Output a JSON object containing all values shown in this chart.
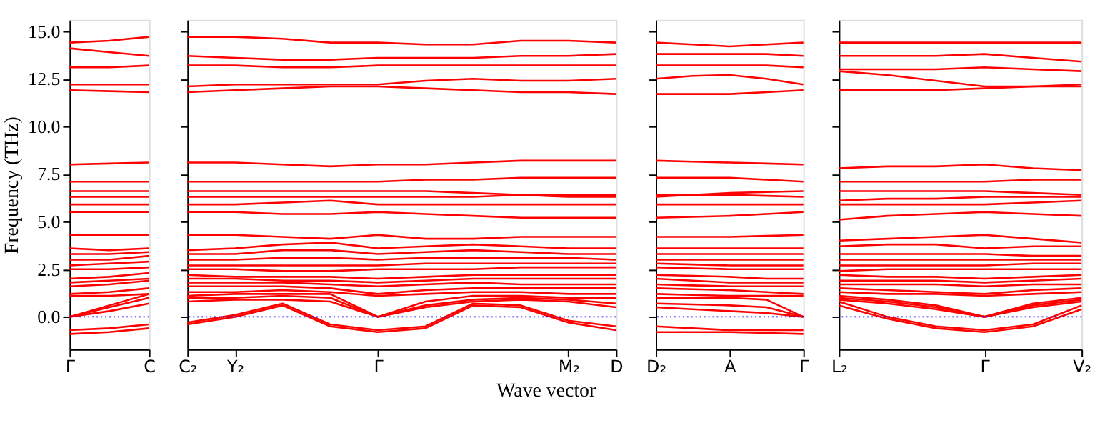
{
  "chart_data": [
    {
      "type": "line",
      "ylabel": "Frequency (THz)",
      "color": "#ff0000",
      "categories": [
        "Γ",
        null,
        "C"
      ],
      "ylim": [
        -1.7,
        15.6
      ],
      "yticks": [
        {
          "value": 0,
          "label": "0.0"
        },
        {
          "value": 2.5,
          "label": "2.5"
        },
        {
          "value": 5,
          "label": "5.0"
        },
        {
          "value": 7.5,
          "label": "7.5"
        },
        {
          "value": 10,
          "label": "10.0"
        },
        {
          "value": 12.5,
          "label": "12.5"
        },
        {
          "value": 15,
          "label": "15.0"
        }
      ],
      "ref_lines": [
        {
          "axis": "y",
          "value": 0,
          "color": "#0000ff",
          "line_style": "dotted"
        }
      ],
      "series": [
        {
          "values": [
            -0.9,
            -0.8,
            -0.6
          ]
        },
        {
          "values": [
            -0.7,
            -0.6,
            -0.4
          ]
        },
        {
          "values": [
            0,
            0.5,
            1.0
          ]
        },
        {
          "values": [
            0,
            0.6,
            1.2
          ]
        },
        {
          "values": [
            0,
            0.3,
            0.7
          ]
        },
        {
          "values": [
            1.1,
            1.1,
            1.2
          ]
        },
        {
          "values": [
            1.2,
            1.3,
            1.5
          ]
        },
        {
          "values": [
            1.6,
            1.7,
            1.9
          ]
        },
        {
          "values": [
            1.8,
            1.9,
            2.0
          ]
        },
        {
          "values": [
            2.0,
            2.1,
            2.3
          ]
        },
        {
          "values": [
            2.5,
            2.5,
            2.6
          ]
        },
        {
          "values": [
            2.7,
            2.8,
            2.9
          ]
        },
        {
          "values": [
            3.0,
            3.0,
            3.2
          ]
        },
        {
          "values": [
            3.3,
            3.3,
            3.4
          ]
        },
        {
          "values": [
            3.6,
            3.5,
            3.6
          ]
        },
        {
          "values": [
            4.3,
            4.3,
            4.3
          ]
        },
        {
          "values": [
            5.5,
            5.5,
            5.5
          ]
        },
        {
          "values": [
            5.9,
            5.9,
            5.9
          ]
        },
        {
          "values": [
            6.3,
            6.3,
            6.3
          ]
        },
        {
          "values": [
            6.6,
            6.6,
            6.6
          ]
        },
        {
          "values": [
            7.1,
            7.1,
            7.1
          ]
        },
        {
          "values": [
            8.0,
            8.05,
            8.1
          ]
        },
        {
          "values": [
            11.9,
            11.85,
            11.8
          ]
        },
        {
          "values": [
            12.2,
            12.2,
            12.2
          ]
        },
        {
          "values": [
            13.1,
            13.1,
            13.2
          ]
        },
        {
          "values": [
            14.1,
            13.9,
            13.7
          ]
        },
        {
          "values": [
            14.4,
            14.5,
            14.7
          ]
        }
      ]
    },
    {
      "type": "line",
      "xlabel": "Wave vector",
      "color": "#ff0000",
      "tick_labels": "x",
      "categories": [
        "C₂",
        "Y₂",
        null,
        null,
        "Γ",
        null,
        null,
        null,
        "M₂",
        "D"
      ],
      "ylim": [
        -1.7,
        15.6
      ],
      "ref_lines": [
        {
          "axis": "y",
          "value": 0,
          "color": "#0000ff",
          "line_style": "dotted"
        }
      ],
      "series": [
        {
          "values": [
            -0.4,
            0.0,
            0.6,
            -0.5,
            -0.8,
            -0.6,
            0.6,
            0.5,
            -0.3,
            -0.7
          ]
        },
        {
          "values": [
            -0.3,
            0.1,
            0.7,
            -0.4,
            -0.7,
            -0.5,
            0.7,
            0.6,
            -0.2,
            -0.5
          ]
        },
        {
          "values": [
            0.8,
            0.9,
            0.9,
            0.8,
            0.0,
            0.5,
            0.8,
            0.9,
            0.8,
            0.5
          ]
        },
        {
          "values": [
            1.0,
            1.0,
            1.1,
            1.0,
            0.0,
            0.6,
            0.9,
            1.0,
            0.9,
            0.7
          ]
        },
        {
          "values": [
            1.1,
            1.2,
            1.2,
            1.2,
            0.0,
            0.8,
            1.1,
            1.1,
            1.0,
            1.0
          ]
        },
        {
          "values": [
            1.3,
            1.3,
            1.4,
            1.3,
            1.1,
            1.2,
            1.3,
            1.3,
            1.2,
            1.2
          ]
        },
        {
          "values": [
            1.6,
            1.6,
            1.6,
            1.5,
            1.2,
            1.4,
            1.5,
            1.5,
            1.5,
            1.5
          ]
        },
        {
          "values": [
            1.8,
            1.8,
            1.8,
            1.7,
            1.6,
            1.7,
            1.8,
            1.7,
            1.7,
            1.7
          ]
        },
        {
          "values": [
            2.0,
            2.0,
            1.9,
            1.9,
            1.8,
            1.9,
            2.0,
            2.0,
            2.0,
            2.0
          ]
        },
        {
          "values": [
            2.2,
            2.1,
            2.1,
            2.1,
            2.0,
            2.1,
            2.2,
            2.2,
            2.2,
            2.2
          ]
        },
        {
          "values": [
            2.5,
            2.5,
            2.4,
            2.4,
            2.5,
            2.5,
            2.5,
            2.6,
            2.6,
            2.6
          ]
        },
        {
          "values": [
            2.7,
            2.7,
            2.7,
            2.7,
            2.7,
            2.8,
            2.8,
            2.8,
            2.8,
            2.8
          ]
        },
        {
          "values": [
            3.0,
            3.0,
            3.1,
            3.1,
            3.0,
            3.1,
            3.1,
            3.1,
            3.1,
            3.0
          ]
        },
        {
          "values": [
            3.3,
            3.3,
            3.5,
            3.5,
            3.3,
            3.4,
            3.5,
            3.4,
            3.3,
            3.3
          ]
        },
        {
          "values": [
            3.5,
            3.6,
            3.8,
            3.9,
            3.6,
            3.7,
            3.8,
            3.7,
            3.6,
            3.6
          ]
        },
        {
          "values": [
            4.3,
            4.3,
            4.2,
            4.1,
            4.3,
            4.1,
            4.1,
            4.2,
            4.2,
            4.2
          ]
        },
        {
          "values": [
            5.5,
            5.5,
            5.4,
            5.4,
            5.5,
            5.4,
            5.3,
            5.2,
            5.2,
            5.2
          ]
        },
        {
          "values": [
            5.9,
            5.9,
            6.0,
            6.1,
            5.9,
            5.9,
            5.9,
            5.9,
            5.9,
            5.9
          ]
        },
        {
          "values": [
            6.3,
            6.3,
            6.3,
            6.3,
            6.3,
            6.3,
            6.3,
            6.4,
            6.4,
            6.4
          ]
        },
        {
          "values": [
            6.6,
            6.6,
            6.6,
            6.6,
            6.6,
            6.6,
            6.5,
            6.4,
            6.3,
            6.3
          ]
        },
        {
          "values": [
            7.1,
            7.1,
            7.1,
            7.1,
            7.1,
            7.2,
            7.2,
            7.3,
            7.3,
            7.3
          ]
        },
        {
          "values": [
            8.1,
            8.1,
            8.0,
            7.9,
            8.0,
            8.0,
            8.1,
            8.2,
            8.2,
            8.2
          ]
        },
        {
          "values": [
            11.8,
            11.9,
            12.0,
            12.1,
            12.1,
            12.0,
            11.9,
            11.8,
            11.8,
            11.7
          ]
        },
        {
          "values": [
            12.1,
            12.2,
            12.2,
            12.2,
            12.2,
            12.4,
            12.5,
            12.4,
            12.4,
            12.5
          ]
        },
        {
          "values": [
            13.2,
            13.2,
            13.1,
            13.1,
            13.2,
            13.2,
            13.2,
            13.2,
            13.2,
            13.2
          ]
        },
        {
          "values": [
            13.7,
            13.6,
            13.5,
            13.5,
            13.6,
            13.6,
            13.6,
            13.7,
            13.7,
            13.8
          ]
        },
        {
          "values": [
            14.7,
            14.7,
            14.6,
            14.4,
            14.4,
            14.3,
            14.3,
            14.5,
            14.5,
            14.4
          ]
        }
      ]
    },
    {
      "type": "line",
      "color": "#ff0000",
      "tick_labels": "x",
      "categories": [
        "D₂",
        null,
        "A",
        null,
        "Γ"
      ],
      "ylim": [
        -1.7,
        15.6
      ],
      "ref_lines": [
        {
          "axis": "y",
          "value": 0,
          "color": "#0000ff",
          "line_style": "dotted"
        }
      ],
      "series": [
        {
          "values": [
            -0.8,
            -0.8,
            -0.8,
            -0.85,
            -0.9
          ]
        },
        {
          "values": [
            -0.5,
            -0.6,
            -0.7,
            -0.7,
            -0.7
          ]
        },
        {
          "values": [
            0.5,
            0.4,
            0.3,
            0.2,
            0.0
          ]
        },
        {
          "values": [
            0.7,
            0.65,
            0.6,
            0.5,
            0.0
          ]
        },
        {
          "values": [
            1.0,
            1.0,
            1.0,
            0.9,
            0.0
          ]
        },
        {
          "values": [
            1.2,
            1.15,
            1.1,
            1.1,
            1.1
          ]
        },
        {
          "values": [
            1.5,
            1.45,
            1.4,
            1.3,
            1.2
          ]
        },
        {
          "values": [
            1.7,
            1.65,
            1.6,
            1.6,
            1.6
          ]
        },
        {
          "values": [
            2.0,
            1.9,
            1.8,
            1.8,
            1.8
          ]
        },
        {
          "values": [
            2.2,
            2.15,
            2.1,
            2.0,
            2.0
          ]
        },
        {
          "values": [
            2.6,
            2.55,
            2.5,
            2.5,
            2.5
          ]
        },
        {
          "values": [
            2.8,
            2.75,
            2.7,
            2.7,
            2.7
          ]
        },
        {
          "values": [
            3.0,
            3.0,
            3.0,
            3.0,
            3.0
          ]
        },
        {
          "values": [
            3.3,
            3.3,
            3.3,
            3.3,
            3.3
          ]
        },
        {
          "values": [
            3.6,
            3.6,
            3.6,
            3.6,
            3.6
          ]
        },
        {
          "values": [
            4.2,
            4.2,
            4.2,
            4.25,
            4.3
          ]
        },
        {
          "values": [
            5.2,
            5.25,
            5.3,
            5.4,
            5.5
          ]
        },
        {
          "values": [
            5.9,
            5.9,
            5.9,
            5.9,
            5.9
          ]
        },
        {
          "values": [
            6.4,
            6.4,
            6.4,
            6.35,
            6.3
          ]
        },
        {
          "values": [
            6.3,
            6.4,
            6.5,
            6.55,
            6.6
          ]
        },
        {
          "values": [
            7.3,
            7.3,
            7.3,
            7.2,
            7.1
          ]
        },
        {
          "values": [
            8.2,
            8.15,
            8.1,
            8.05,
            8.0
          ]
        },
        {
          "values": [
            11.7,
            11.7,
            11.7,
            11.8,
            11.9
          ]
        },
        {
          "values": [
            12.5,
            12.65,
            12.7,
            12.5,
            12.2
          ]
        },
        {
          "values": [
            13.2,
            13.2,
            13.2,
            13.2,
            13.1
          ]
        },
        {
          "values": [
            13.8,
            13.8,
            13.8,
            13.8,
            13.7
          ]
        },
        {
          "values": [
            14.4,
            14.3,
            14.2,
            14.3,
            14.4
          ]
        }
      ]
    },
    {
      "type": "line",
      "color": "#ff0000",
      "tick_labels": "x",
      "categories": [
        "L₂",
        null,
        null,
        "Γ",
        null,
        "V₂"
      ],
      "ylim": [
        -1.7,
        15.6
      ],
      "ref_lines": [
        {
          "axis": "y",
          "value": 0,
          "color": "#0000ff",
          "line_style": "dotted"
        }
      ],
      "series": [
        {
          "values": [
            0.6,
            -0.1,
            -0.6,
            -0.8,
            -0.5,
            0.4
          ]
        },
        {
          "values": [
            0.8,
            0.0,
            -0.5,
            -0.7,
            -0.4,
            0.6
          ]
        },
        {
          "values": [
            0.9,
            0.7,
            0.4,
            0.0,
            0.5,
            0.8
          ]
        },
        {
          "values": [
            1.0,
            0.8,
            0.5,
            0.0,
            0.6,
            0.9
          ]
        },
        {
          "values": [
            1.1,
            0.9,
            0.6,
            0.0,
            0.7,
            1.0
          ]
        },
        {
          "values": [
            1.3,
            1.2,
            1.2,
            1.1,
            1.2,
            1.3
          ]
        },
        {
          "values": [
            1.5,
            1.4,
            1.3,
            1.2,
            1.4,
            1.5
          ]
        },
        {
          "values": [
            1.7,
            1.7,
            1.7,
            1.6,
            1.7,
            1.7
          ]
        },
        {
          "values": [
            1.9,
            1.9,
            1.9,
            1.8,
            1.9,
            2.0
          ]
        },
        {
          "values": [
            2.2,
            2.1,
            2.1,
            2.0,
            2.1,
            2.2
          ]
        },
        {
          "values": [
            2.4,
            2.5,
            2.5,
            2.5,
            2.5,
            2.5
          ]
        },
        {
          "values": [
            2.7,
            2.7,
            2.7,
            2.7,
            2.8,
            2.8
          ]
        },
        {
          "values": [
            3.0,
            3.0,
            3.0,
            3.0,
            3.0,
            3.0
          ]
        },
        {
          "values": [
            3.3,
            3.3,
            3.3,
            3.3,
            3.2,
            3.2
          ]
        },
        {
          "values": [
            3.7,
            3.8,
            3.8,
            3.6,
            3.7,
            3.7
          ]
        },
        {
          "values": [
            4.0,
            4.1,
            4.2,
            4.3,
            4.1,
            3.9
          ]
        },
        {
          "values": [
            5.1,
            5.3,
            5.4,
            5.5,
            5.4,
            5.3
          ]
        },
        {
          "values": [
            5.9,
            5.9,
            5.9,
            5.9,
            6.0,
            6.1
          ]
        },
        {
          "values": [
            6.1,
            6.2,
            6.2,
            6.3,
            6.3,
            6.3
          ]
        },
        {
          "values": [
            6.6,
            6.6,
            6.6,
            6.6,
            6.5,
            6.4
          ]
        },
        {
          "values": [
            7.1,
            7.1,
            7.1,
            7.1,
            7.2,
            7.2
          ]
        },
        {
          "values": [
            7.8,
            7.9,
            7.9,
            8.0,
            7.8,
            7.7
          ]
        },
        {
          "values": [
            11.9,
            11.9,
            11.9,
            12.0,
            12.1,
            12.2
          ]
        },
        {
          "values": [
            12.9,
            12.7,
            12.4,
            12.1,
            12.1,
            12.1
          ]
        },
        {
          "values": [
            13.0,
            13.0,
            13.0,
            13.1,
            13.0,
            12.9
          ]
        },
        {
          "values": [
            13.7,
            13.7,
            13.7,
            13.8,
            13.6,
            13.4
          ]
        },
        {
          "values": [
            14.4,
            14.4,
            14.4,
            14.4,
            14.4,
            14.4
          ]
        }
      ]
    }
  ]
}
